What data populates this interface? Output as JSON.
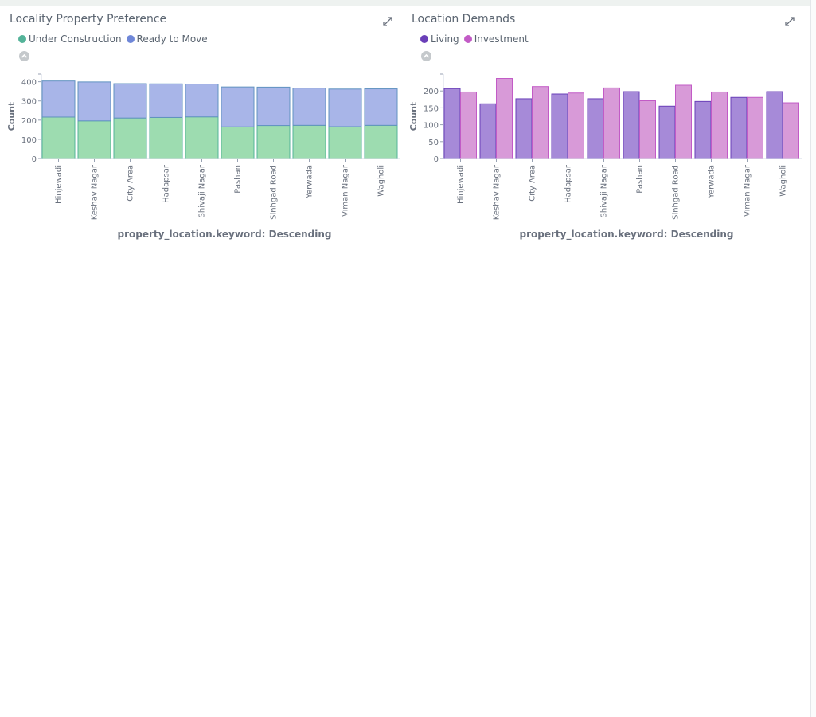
{
  "panels": [
    {
      "title": "Locality Property Preference",
      "legend": [
        {
          "label": "Under Construction",
          "color": "#54B399"
        },
        {
          "label": "Ready to Move",
          "color": "#6092C0"
        }
      ]
    },
    {
      "title": "Location Demands",
      "legend": [
        {
          "label": "Living",
          "color": "#6a3fb8"
        },
        {
          "label": "Investment",
          "color": "#c25bc6"
        }
      ]
    }
  ],
  "chart_data": [
    {
      "type": "bar",
      "stacked": true,
      "title": "Locality Property Preference",
      "xlabel": "property_location.keyword: Descending",
      "ylabel": "Count",
      "categories": [
        "Hinjewadi",
        "Keshav Nagar",
        "City Area",
        "Hadapsar",
        "Shivaji Nagar",
        "Pashan",
        "Sinhgad Road",
        "Yerwada",
        "Viman Nagar",
        "Wagholi"
      ],
      "series": [
        {
          "name": "Under Construction",
          "color": "#54B399",
          "fill": "#9ddcb0",
          "values": [
            216,
            196,
            211,
            214,
            217,
            165,
            172,
            173,
            166,
            173
          ]
        },
        {
          "name": "Ready to Move",
          "color": "#6092C0",
          "fill": "#a8b5e8",
          "values": [
            188,
            203,
            179,
            175,
            171,
            208,
            200,
            194,
            196,
            190
          ]
        }
      ],
      "yticks": [
        0,
        100,
        200,
        300,
        400
      ],
      "ylim": [
        0,
        440
      ]
    },
    {
      "type": "bar",
      "stacked": false,
      "title": "Location Demands",
      "xlabel": "property_location.keyword: Descending",
      "ylabel": "Count",
      "categories": [
        "Hinjewadi",
        "Keshav Nagar",
        "City Area",
        "Hadapsar",
        "Shivaji Nagar",
        "Pashan",
        "Sinhgad Road",
        "Yerwada",
        "Viman Nagar",
        "Wagholi"
      ],
      "series": [
        {
          "name": "Living",
          "color": "#6a3fb8",
          "fill": "#a68ad8",
          "values": [
            207,
            162,
            177,
            191,
            177,
            198,
            155,
            169,
            181,
            198
          ]
        },
        {
          "name": "Investment",
          "color": "#c25bc6",
          "fill": "#d89ad8",
          "values": [
            197,
            237,
            213,
            194,
            209,
            171,
            217,
            197,
            181,
            165
          ]
        }
      ],
      "yticks": [
        0,
        50,
        100,
        150,
        200
      ],
      "ylim": [
        0,
        250
      ]
    }
  ]
}
